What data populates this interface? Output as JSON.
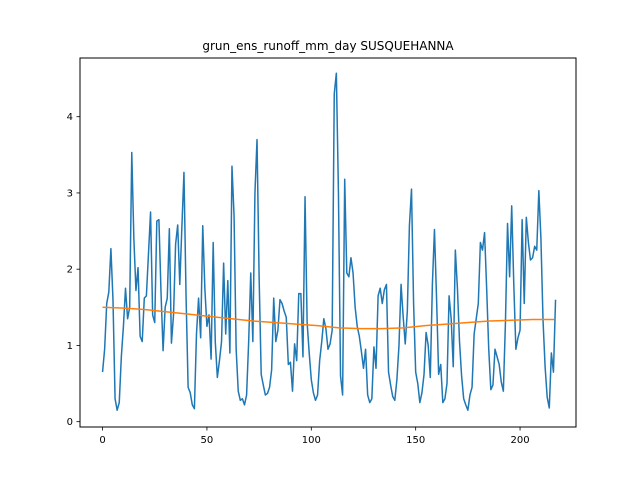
{
  "chart_data": {
    "type": "line",
    "title": "grun_ens_runoff_mm_day SUSQUEHANNA",
    "xlabel": "",
    "ylabel": "",
    "xlim": [
      -10.8,
      226.8
    ],
    "ylim": [
      -0.07,
      4.77
    ],
    "xticks": [
      0,
      50,
      100,
      150,
      200
    ],
    "yticks": [
      0,
      1,
      2,
      3,
      4
    ],
    "grid": false,
    "colors": {
      "series_1": "#1f77b4",
      "series_2": "#ff7f0e"
    },
    "series": [
      {
        "x_start": 0,
        "values": [
          0.65,
          0.95,
          1.55,
          1.7,
          2.27,
          1.6,
          0.3,
          0.15,
          0.25,
          0.85,
          1.25,
          1.75,
          1.35,
          1.5,
          3.53,
          2.4,
          1.72,
          2.02,
          1.12,
          1.05,
          1.62,
          1.65,
          2.2,
          2.75,
          1.4,
          1.3,
          2.63,
          2.65,
          1.7,
          0.93,
          1.5,
          1.62,
          2.53,
          1.03,
          1.4,
          2.33,
          2.58,
          1.8,
          2.55,
          3.27,
          1.65,
          0.45,
          0.38,
          0.22,
          0.17,
          1.15,
          1.62,
          1.1,
          2.57,
          1.75,
          1.25,
          1.4,
          0.82,
          2.35,
          1.05,
          0.58,
          0.8,
          1.05,
          2.08,
          1.15,
          1.85,
          0.9,
          3.35,
          2.7,
          0.95,
          0.4,
          0.28,
          0.3,
          0.22,
          0.35,
          1.05,
          1.95,
          1.05,
          3.0,
          3.7,
          1.9,
          0.62,
          0.48,
          0.35,
          0.37,
          0.45,
          0.68,
          1.62,
          1.05,
          1.2,
          1.6,
          1.55,
          1.45,
          1.37,
          0.75,
          0.78,
          0.4,
          1.02,
          0.8,
          1.68,
          1.68,
          0.85,
          2.95,
          1.3,
          0.9,
          0.55,
          0.38,
          0.28,
          0.35,
          0.8,
          1.05,
          1.35,
          1.22,
          0.95,
          1.02,
          1.2,
          4.3,
          4.57,
          3.0,
          0.6,
          0.35,
          3.18,
          1.95,
          1.9,
          2.15,
          1.95,
          1.5,
          1.25,
          1.12,
          0.92,
          0.7,
          0.95,
          0.35,
          0.25,
          0.3,
          0.98,
          0.7,
          1.65,
          1.75,
          1.55,
          1.73,
          1.8,
          0.65,
          0.48,
          0.33,
          0.28,
          0.55,
          1.0,
          1.8,
          1.38,
          1.02,
          1.45,
          2.57,
          3.05,
          1.55,
          0.65,
          0.5,
          0.25,
          0.38,
          0.62,
          1.17,
          1.0,
          0.58,
          1.8,
          2.52,
          1.62,
          0.62,
          0.75,
          0.25,
          0.3,
          0.5,
          1.65,
          1.35,
          0.72,
          2.25,
          1.75,
          1.05,
          0.6,
          0.3,
          0.22,
          0.15,
          0.35,
          0.45,
          1.15,
          1.35,
          1.55,
          2.35,
          2.25,
          2.48,
          1.75,
          0.95,
          0.42,
          0.48,
          0.95,
          0.85,
          0.75,
          0.52,
          0.4,
          1.3,
          2.6,
          1.9,
          2.83,
          1.8,
          0.95,
          1.1,
          1.2,
          2.65,
          1.55,
          2.68,
          2.35,
          2.12,
          2.15,
          2.3,
          2.25,
          3.03,
          2.4,
          1.33,
          0.72,
          0.32,
          0.18,
          0.9,
          0.65,
          1.6
        ]
      },
      {
        "x_start": 0,
        "values": [
          1.5,
          1.49,
          1.47,
          1.44,
          1.41,
          1.38,
          1.35,
          1.32,
          1.3,
          1.28,
          1.26,
          1.23,
          1.22,
          1.22,
          1.23,
          1.26,
          1.28,
          1.3,
          1.32,
          1.33,
          1.34,
          1.34
        ],
        "x_step": 10.3
      }
    ]
  }
}
